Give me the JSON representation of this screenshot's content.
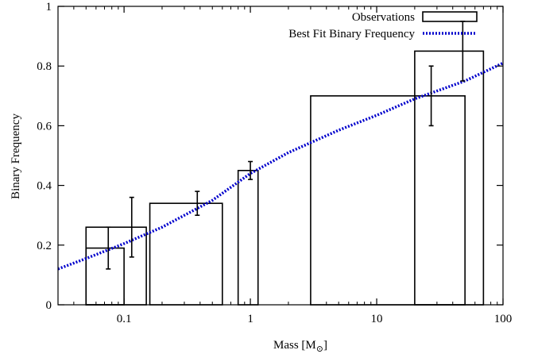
{
  "chart_data": {
    "type": "bar",
    "xlabel": "Mass [M",
    "xlabel_sub": "⊙",
    "xlabel_close": "]",
    "ylabel": "Binary Frequency",
    "xscale": "log",
    "xlim": [
      0.03,
      100
    ],
    "ylim": [
      0,
      1
    ],
    "grid": false,
    "legend_position": "top-right",
    "x_ticks": [
      {
        "value": 0.1,
        "label": "0.1"
      },
      {
        "value": 1,
        "label": "1"
      },
      {
        "value": 10,
        "label": "10"
      },
      {
        "value": 100,
        "label": "100"
      }
    ],
    "y_ticks": [
      {
        "value": 0,
        "label": "0"
      },
      {
        "value": 0.2,
        "label": "0.2"
      },
      {
        "value": 0.4,
        "label": "0.4"
      },
      {
        "value": 0.6,
        "label": "0.6"
      },
      {
        "value": 0.8,
        "label": "0.8"
      },
      {
        "value": 1,
        "label": "1"
      }
    ],
    "series": [
      {
        "name": "Observations",
        "style": "histogram-boxes",
        "color": "#000000",
        "bars": [
          {
            "x_min": 0.05,
            "x_max": 0.15,
            "value": 0.26,
            "err_x": 0.115,
            "err_low": 0.16,
            "err_high": 0.36
          },
          {
            "x_min": 0.05,
            "x_max": 0.1,
            "value": 0.19,
            "err_x": 0.075,
            "err_low": 0.12,
            "err_high": 0.26
          },
          {
            "x_min": 0.16,
            "x_max": 0.6,
            "value": 0.34,
            "err_x": 0.38,
            "err_low": 0.3,
            "err_high": 0.38
          },
          {
            "x_min": 0.8,
            "x_max": 1.15,
            "value": 0.45,
            "err_x": 1.0,
            "err_low": 0.42,
            "err_high": 0.48
          },
          {
            "x_min": 3,
            "x_max": 50,
            "value": 0.7,
            "err_x": 27,
            "err_low": 0.6,
            "err_high": 0.8
          },
          {
            "x_min": 20,
            "x_max": 70,
            "value": 0.85,
            "err_x": 48,
            "err_low": 0.75,
            "err_high": 0.95
          }
        ]
      },
      {
        "name": "Best Fit Binary Frequency",
        "style": "dotted-line",
        "color": "#0000cc",
        "x": [
          0.03,
          0.05,
          0.1,
          0.2,
          0.5,
          1,
          2,
          5,
          10,
          20,
          50,
          100
        ],
        "y": [
          0.12,
          0.155,
          0.205,
          0.26,
          0.35,
          0.44,
          0.51,
          0.585,
          0.635,
          0.69,
          0.75,
          0.81
        ]
      }
    ]
  }
}
